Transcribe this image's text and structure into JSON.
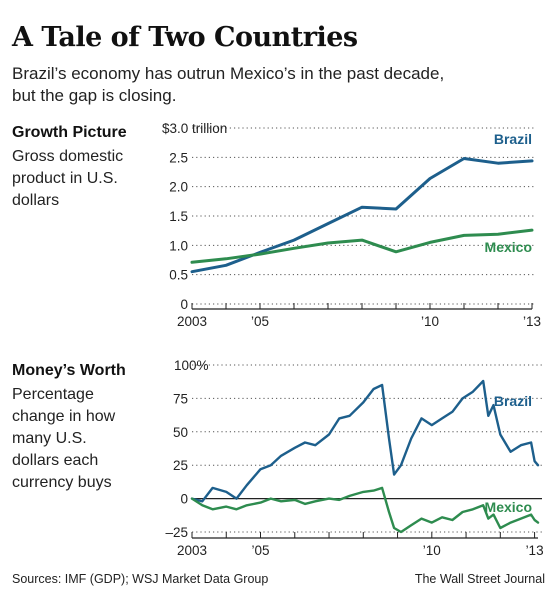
{
  "header": {
    "title": "A Tale of Two Countries",
    "subtitle_line1": "Brazil’s economy has outrun Mexico’s in the past decade,",
    "subtitle_line2": "but the gap is closing."
  },
  "footer": {
    "sources": "Sources: IMF (GDP); WSJ Market Data Group",
    "publisher": "The Wall Street Journal"
  },
  "colors": {
    "brazil": "#1d5f8c",
    "mexico": "#2e8c4f"
  },
  "chart_data": [
    {
      "type": "line",
      "panel_title": "Growth Picture",
      "description": [
        "Gross domestic",
        "product in U.S.",
        "dollars"
      ],
      "ylim": [
        0,
        3.0
      ],
      "xlim": [
        2003,
        2013
      ],
      "y_ticks": [
        0,
        0.5,
        1.0,
        1.5,
        2.0,
        2.5,
        3.0
      ],
      "y_tick_labels": [
        "0",
        "0.5",
        "1.0",
        "1.5",
        "2.0",
        "2.5",
        "$3.0 trillion"
      ],
      "x_tick_labels": [
        {
          "x": 2003,
          "label": "2003"
        },
        {
          "x": 2005,
          "label": "’05"
        },
        {
          "x": 2010,
          "label": "’10"
        },
        {
          "x": 2013,
          "label": "’13"
        }
      ],
      "grid": "horizontal-dotted",
      "series": [
        {
          "name": "Brazil",
          "x": [
            2003,
            2004,
            2005,
            2006,
            2007,
            2008,
            2009,
            2010,
            2011,
            2012,
            2013
          ],
          "values": [
            0.55,
            0.66,
            0.88,
            1.09,
            1.37,
            1.65,
            1.62,
            2.14,
            2.48,
            2.4,
            2.44
          ]
        },
        {
          "name": "Mexico",
          "x": [
            2003,
            2004,
            2005,
            2006,
            2007,
            2008,
            2009,
            2010,
            2011,
            2012,
            2013
          ],
          "values": [
            0.71,
            0.77,
            0.85,
            0.95,
            1.04,
            1.09,
            0.89,
            1.05,
            1.17,
            1.19,
            1.26
          ]
        }
      ]
    },
    {
      "type": "line",
      "panel_title": "Money’s Worth",
      "description": [
        "Percentage",
        "change in how",
        "many U.S.",
        "dollars each",
        "currency buys"
      ],
      "ylim": [
        -25,
        100
      ],
      "xlim": [
        2003,
        2013.1
      ],
      "y_ticks": [
        -25,
        0,
        25,
        50,
        75,
        100
      ],
      "y_tick_labels": [
        "–25",
        "0",
        "25",
        "50",
        "75",
        "100%"
      ],
      "x_tick_labels": [
        {
          "x": 2003,
          "label": "2003"
        },
        {
          "x": 2005,
          "label": "’05"
        },
        {
          "x": 2010,
          "label": "’10"
        },
        {
          "x": 2013,
          "label": "’13"
        }
      ],
      "grid": "horizontal-dotted",
      "series": [
        {
          "name": "Brazil",
          "x": [
            2003.0,
            2003.3,
            2003.6,
            2004.0,
            2004.3,
            2004.6,
            2005.0,
            2005.3,
            2005.6,
            2006.0,
            2006.3,
            2006.6,
            2007.0,
            2007.3,
            2007.6,
            2008.0,
            2008.3,
            2008.55,
            2008.75,
            2008.9,
            2009.1,
            2009.4,
            2009.7,
            2010.0,
            2010.3,
            2010.6,
            2010.9,
            2011.2,
            2011.5,
            2011.65,
            2011.8,
            2012.0,
            2012.3,
            2012.6,
            2012.9,
            2013.0,
            2013.1
          ],
          "values": [
            0,
            -2,
            8,
            5,
            0,
            10,
            22,
            25,
            32,
            38,
            42,
            40,
            48,
            60,
            62,
            72,
            82,
            85,
            45,
            18,
            25,
            45,
            60,
            55,
            60,
            65,
            75,
            80,
            88,
            62,
            70,
            48,
            35,
            40,
            42,
            28,
            25
          ]
        },
        {
          "name": "Mexico",
          "x": [
            2003.0,
            2003.3,
            2003.6,
            2004.0,
            2004.3,
            2004.6,
            2005.0,
            2005.3,
            2005.6,
            2006.0,
            2006.3,
            2006.6,
            2007.0,
            2007.3,
            2007.6,
            2008.0,
            2008.3,
            2008.55,
            2008.75,
            2008.9,
            2009.1,
            2009.4,
            2009.7,
            2010.0,
            2010.3,
            2010.6,
            2010.9,
            2011.2,
            2011.5,
            2011.65,
            2011.8,
            2012.0,
            2012.3,
            2012.6,
            2012.9,
            2013.0,
            2013.1
          ],
          "values": [
            0,
            -5,
            -8,
            -6,
            -8,
            -5,
            -3,
            0,
            -2,
            -1,
            -4,
            -2,
            0,
            -1,
            2,
            5,
            6,
            8,
            -10,
            -22,
            -25,
            -20,
            -15,
            -18,
            -14,
            -16,
            -10,
            -8,
            -5,
            -15,
            -12,
            -22,
            -18,
            -15,
            -12,
            -16,
            -18
          ]
        }
      ]
    }
  ]
}
